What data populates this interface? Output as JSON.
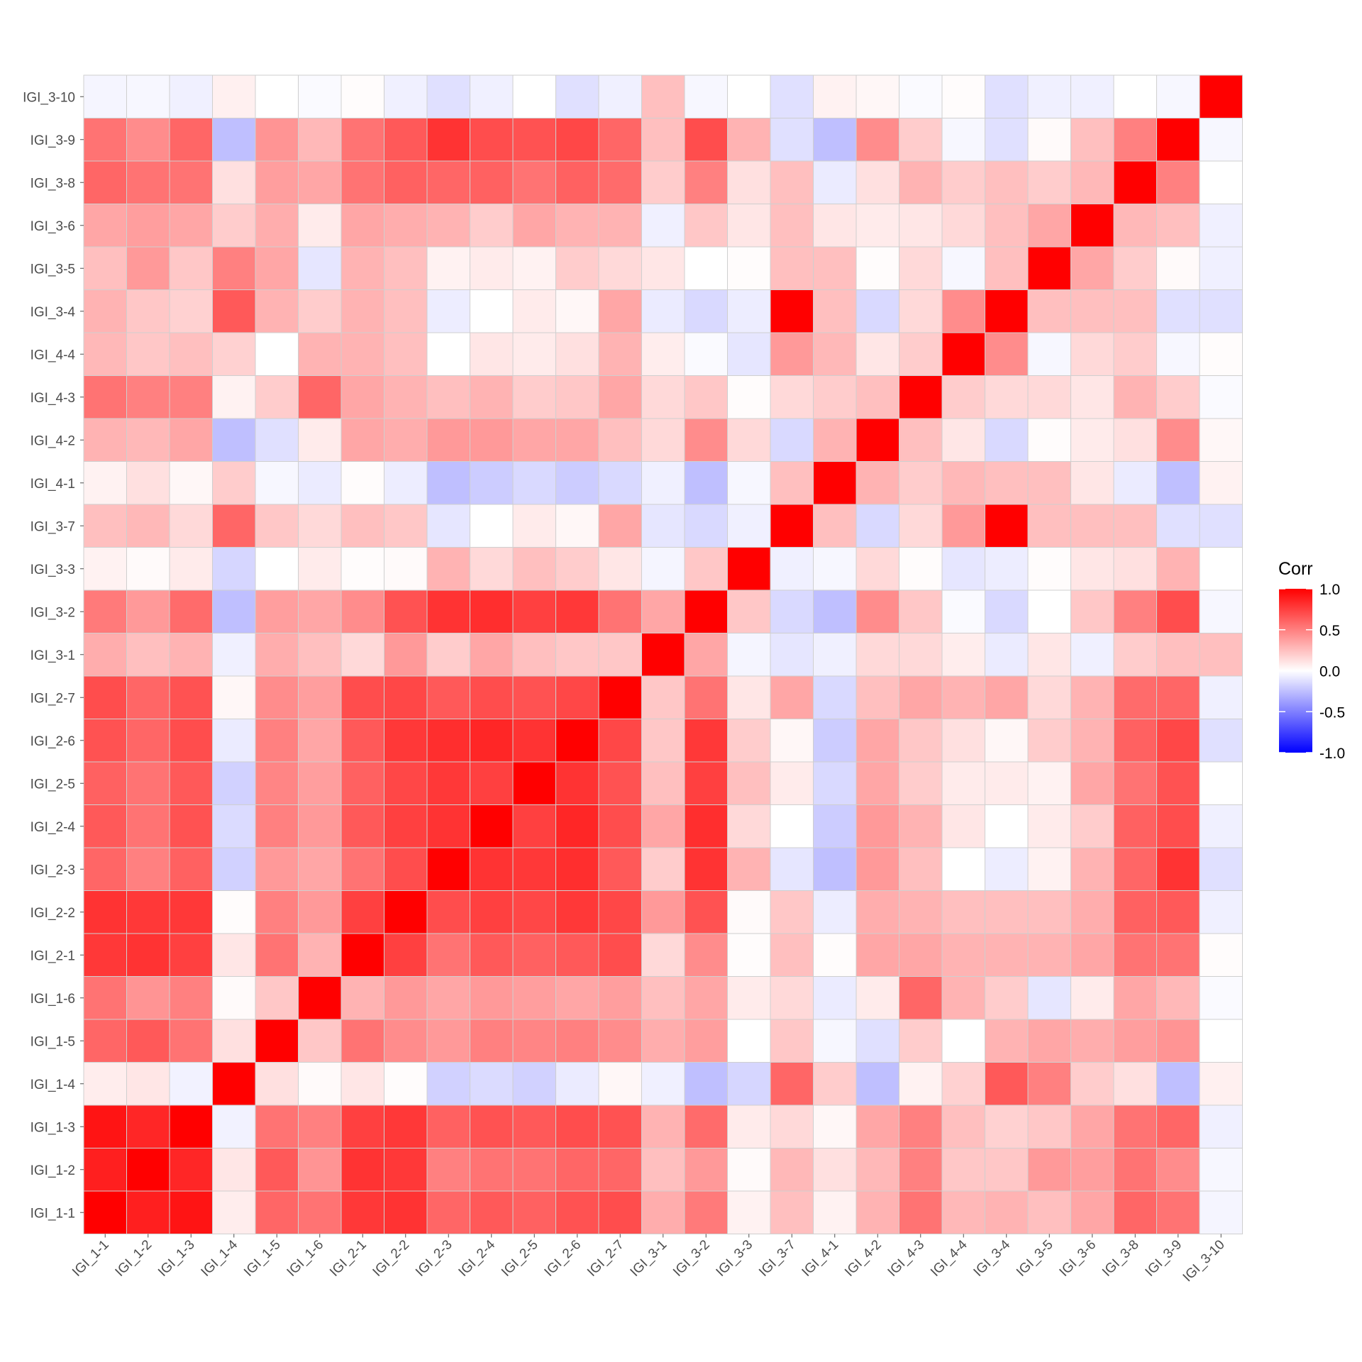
{
  "chart_data": {
    "type": "heatmap",
    "title": "",
    "xlabel": "",
    "ylabel": "",
    "labels": [
      "IGI_1-1",
      "IGI_1-2",
      "IGI_1-3",
      "IGI_1-4",
      "IGI_1-5",
      "IGI_1-6",
      "IGI_2-1",
      "IGI_2-2",
      "IGI_2-3",
      "IGI_2-4",
      "IGI_2-5",
      "IGI_2-6",
      "IGI_2-7",
      "IGI_3-1",
      "IGI_3-2",
      "IGI_3-3",
      "IGI_3-7",
      "IGI_4-1",
      "IGI_4-2",
      "IGI_4-3",
      "IGI_4-4",
      "IGI_3-4",
      "IGI_3-5",
      "IGI_3-6",
      "IGI_3-8",
      "IGI_3-9",
      "IGI_3-10"
    ],
    "matrix_note": "values[i][j]: i = row label (bottom to top, same order as labels), j = column label",
    "values": [
      [
        1.0,
        0.88,
        0.92,
        0.07,
        0.6,
        0.55,
        0.78,
        0.8,
        0.6,
        0.65,
        0.62,
        0.68,
        0.7,
        0.32,
        0.52,
        0.05,
        0.25,
        0.05,
        0.3,
        0.55,
        0.28,
        0.3,
        0.25,
        0.35,
        0.6,
        0.55,
        -0.04
      ],
      [
        0.88,
        1.0,
        0.85,
        0.1,
        0.65,
        0.42,
        0.8,
        0.78,
        0.5,
        0.55,
        0.55,
        0.6,
        0.6,
        0.25,
        0.4,
        0.02,
        0.28,
        0.12,
        0.28,
        0.5,
        0.22,
        0.22,
        0.4,
        0.38,
        0.55,
        0.45,
        -0.03
      ],
      [
        0.92,
        0.85,
        1.0,
        -0.05,
        0.55,
        0.5,
        0.75,
        0.78,
        0.62,
        0.68,
        0.65,
        0.7,
        0.68,
        0.3,
        0.58,
        0.08,
        0.15,
        0.03,
        0.35,
        0.5,
        0.25,
        0.18,
        0.22,
        0.35,
        0.55,
        0.6,
        -0.06
      ],
      [
        0.07,
        0.1,
        -0.05,
        1.0,
        0.12,
        0.02,
        0.1,
        0.01,
        -0.18,
        -0.14,
        -0.18,
        -0.08,
        0.03,
        -0.06,
        -0.25,
        -0.16,
        0.6,
        0.2,
        -0.25,
        0.05,
        0.18,
        0.65,
        0.5,
        0.2,
        0.12,
        -0.25,
        0.06
      ],
      [
        0.6,
        0.65,
        0.55,
        0.12,
        1.0,
        0.22,
        0.55,
        0.45,
        0.4,
        0.5,
        0.48,
        0.5,
        0.45,
        0.32,
        0.38,
        0.0,
        0.22,
        -0.03,
        -0.12,
        0.2,
        0.0,
        0.3,
        0.35,
        0.32,
        0.38,
        0.42,
        0.0
      ],
      [
        0.55,
        0.42,
        0.5,
        0.02,
        0.22,
        1.0,
        0.3,
        0.4,
        0.35,
        0.4,
        0.38,
        0.35,
        0.38,
        0.25,
        0.35,
        0.08,
        0.15,
        -0.08,
        0.08,
        0.6,
        0.3,
        0.2,
        -0.1,
        0.08,
        0.35,
        0.28,
        -0.02
      ],
      [
        0.78,
        0.8,
        0.75,
        0.1,
        0.55,
        0.3,
        1.0,
        0.75,
        0.55,
        0.65,
        0.62,
        0.65,
        0.7,
        0.15,
        0.45,
        0.01,
        0.25,
        0.01,
        0.35,
        0.35,
        0.3,
        0.3,
        0.3,
        0.35,
        0.55,
        0.55,
        0.01
      ],
      [
        0.8,
        0.78,
        0.78,
        0.01,
        0.5,
        0.4,
        0.75,
        1.0,
        0.7,
        0.75,
        0.72,
        0.78,
        0.72,
        0.4,
        0.68,
        0.02,
        0.22,
        -0.07,
        0.32,
        0.3,
        0.25,
        0.25,
        0.25,
        0.32,
        0.62,
        0.65,
        -0.06
      ],
      [
        0.6,
        0.5,
        0.62,
        -0.18,
        0.4,
        0.35,
        0.55,
        0.7,
        1.0,
        0.8,
        0.78,
        0.82,
        0.65,
        0.2,
        0.8,
        0.3,
        -0.1,
        -0.25,
        0.4,
        0.25,
        0.0,
        -0.07,
        0.05,
        0.3,
        0.6,
        0.8,
        -0.12
      ],
      [
        0.65,
        0.55,
        0.68,
        -0.14,
        0.5,
        0.4,
        0.65,
        0.75,
        0.8,
        1.0,
        0.75,
        0.85,
        0.7,
        0.35,
        0.82,
        0.15,
        0.0,
        -0.2,
        0.4,
        0.3,
        0.1,
        0.0,
        0.08,
        0.2,
        0.62,
        0.7,
        -0.06
      ],
      [
        0.62,
        0.55,
        0.65,
        -0.18,
        0.48,
        0.38,
        0.62,
        0.72,
        0.78,
        0.75,
        1.0,
        0.8,
        0.68,
        0.25,
        0.75,
        0.25,
        0.08,
        -0.15,
        0.35,
        0.2,
        0.08,
        0.08,
        0.05,
        0.35,
        0.55,
        0.68,
        0.0
      ],
      [
        0.68,
        0.6,
        0.7,
        -0.08,
        0.5,
        0.35,
        0.65,
        0.78,
        0.82,
        0.85,
        0.8,
        1.0,
        0.72,
        0.22,
        0.78,
        0.2,
        0.03,
        -0.2,
        0.35,
        0.22,
        0.12,
        0.03,
        0.2,
        0.3,
        0.62,
        0.72,
        -0.12
      ],
      [
        0.7,
        0.6,
        0.68,
        0.03,
        0.45,
        0.38,
        0.7,
        0.72,
        0.65,
        0.7,
        0.68,
        0.72,
        1.0,
        0.22,
        0.55,
        0.1,
        0.35,
        -0.15,
        0.25,
        0.35,
        0.3,
        0.35,
        0.15,
        0.3,
        0.58,
        0.6,
        -0.06
      ],
      [
        0.32,
        0.25,
        0.3,
        -0.06,
        0.32,
        0.25,
        0.15,
        0.4,
        0.2,
        0.35,
        0.25,
        0.22,
        0.22,
        1.0,
        0.35,
        -0.04,
        -0.1,
        -0.06,
        0.15,
        0.15,
        0.07,
        -0.08,
        0.1,
        -0.06,
        0.2,
        0.25,
        0.25
      ],
      [
        0.52,
        0.4,
        0.58,
        -0.25,
        0.38,
        0.35,
        0.45,
        0.68,
        0.8,
        0.82,
        0.75,
        0.78,
        0.55,
        0.35,
        1.0,
        0.22,
        -0.15,
        -0.25,
        0.45,
        0.22,
        -0.02,
        -0.15,
        0.0,
        0.22,
        0.5,
        0.7,
        -0.03
      ],
      [
        0.05,
        0.02,
        0.08,
        -0.16,
        0.0,
        0.08,
        0.01,
        0.02,
        0.3,
        0.15,
        0.25,
        0.2,
        0.1,
        -0.04,
        0.22,
        1.0,
        -0.06,
        -0.03,
        0.15,
        0.01,
        -0.1,
        -0.07,
        0.01,
        0.1,
        0.12,
        0.3,
        0.0
      ],
      [
        0.25,
        0.28,
        0.15,
        0.6,
        0.22,
        0.15,
        0.25,
        0.22,
        -0.1,
        0.0,
        0.08,
        0.03,
        0.35,
        -0.1,
        -0.15,
        -0.06,
        1.0,
        0.25,
        -0.15,
        0.15,
        0.4,
        1.0,
        0.25,
        0.25,
        0.25,
        -0.12,
        -0.12
      ],
      [
        0.05,
        0.12,
        0.03,
        0.2,
        -0.03,
        -0.08,
        0.01,
        -0.07,
        -0.25,
        -0.2,
        -0.15,
        -0.2,
        -0.15,
        -0.06,
        -0.25,
        -0.03,
        0.25,
        1.0,
        0.3,
        0.2,
        0.28,
        0.25,
        0.25,
        0.1,
        -0.08,
        -0.25,
        0.05
      ],
      [
        0.3,
        0.28,
        0.35,
        -0.25,
        -0.12,
        0.08,
        0.35,
        0.32,
        0.4,
        0.4,
        0.35,
        0.35,
        0.25,
        0.15,
        0.45,
        0.15,
        -0.15,
        0.3,
        1.0,
        0.25,
        0.1,
        -0.15,
        0.01,
        0.08,
        0.12,
        0.45,
        0.03
      ],
      [
        0.55,
        0.5,
        0.5,
        0.05,
        0.2,
        0.6,
        0.35,
        0.3,
        0.25,
        0.3,
        0.2,
        0.22,
        0.35,
        0.15,
        0.22,
        0.01,
        0.15,
        0.2,
        0.25,
        1.0,
        0.2,
        0.15,
        0.15,
        0.1,
        0.3,
        0.2,
        -0.02
      ],
      [
        0.28,
        0.22,
        0.25,
        0.18,
        0.0,
        0.3,
        0.3,
        0.25,
        0.0,
        0.1,
        0.08,
        0.12,
        0.3,
        0.07,
        -0.02,
        -0.1,
        0.4,
        0.28,
        0.1,
        0.2,
        1.0,
        0.45,
        -0.03,
        0.15,
        0.2,
        -0.03,
        0.01
      ],
      [
        0.3,
        0.22,
        0.18,
        0.65,
        0.3,
        0.2,
        0.3,
        0.25,
        -0.07,
        0.0,
        0.08,
        0.03,
        0.35,
        -0.08,
        -0.15,
        -0.07,
        1.0,
        0.25,
        -0.15,
        0.15,
        0.45,
        1.0,
        0.25,
        0.25,
        0.25,
        -0.12,
        -0.12
      ],
      [
        0.25,
        0.4,
        0.22,
        0.5,
        0.35,
        -0.1,
        0.3,
        0.25,
        0.05,
        0.08,
        0.05,
        0.2,
        0.15,
        0.1,
        0.0,
        0.01,
        0.25,
        0.25,
        0.01,
        0.15,
        -0.03,
        0.25,
        1.0,
        0.35,
        0.2,
        0.02,
        -0.06
      ],
      [
        0.35,
        0.38,
        0.35,
        0.2,
        0.32,
        0.08,
        0.35,
        0.32,
        0.3,
        0.2,
        0.35,
        0.3,
        0.3,
        -0.06,
        0.22,
        0.1,
        0.25,
        0.1,
        0.08,
        0.1,
        0.15,
        0.25,
        0.35,
        1.0,
        0.28,
        0.25,
        -0.06
      ],
      [
        0.6,
        0.55,
        0.55,
        0.12,
        0.38,
        0.35,
        0.55,
        0.62,
        0.6,
        0.62,
        0.55,
        0.62,
        0.58,
        0.2,
        0.5,
        0.12,
        0.25,
        -0.08,
        0.12,
        0.3,
        0.2,
        0.25,
        0.2,
        0.28,
        1.0,
        0.5,
        0.0
      ],
      [
        0.55,
        0.45,
        0.6,
        -0.25,
        0.42,
        0.28,
        0.55,
        0.65,
        0.8,
        0.7,
        0.68,
        0.72,
        0.6,
        0.25,
        0.7,
        0.3,
        -0.12,
        -0.25,
        0.45,
        0.2,
        -0.03,
        -0.12,
        0.02,
        0.25,
        0.5,
        1.0,
        -0.03
      ],
      [
        -0.04,
        -0.03,
        -0.06,
        0.06,
        0.0,
        -0.02,
        0.01,
        -0.06,
        -0.12,
        -0.06,
        0.0,
        -0.12,
        -0.06,
        0.25,
        -0.03,
        0.0,
        -0.12,
        0.05,
        0.03,
        -0.02,
        0.01,
        -0.12,
        -0.06,
        -0.06,
        0.0,
        -0.03,
        1.0
      ]
    ],
    "legend": {
      "title": "Corr",
      "ticks": [
        "1.0",
        "0.5",
        "0.0",
        "-0.5",
        "-1.0"
      ],
      "tick_values": [
        1.0,
        0.5,
        0.0,
        -0.5,
        -1.0
      ],
      "placement": "right"
    },
    "colors": {
      "low": "#0000ff",
      "mid": "#ffffff",
      "high": "#ff0000"
    },
    "range": [
      -1,
      1
    ],
    "grid": true
  }
}
